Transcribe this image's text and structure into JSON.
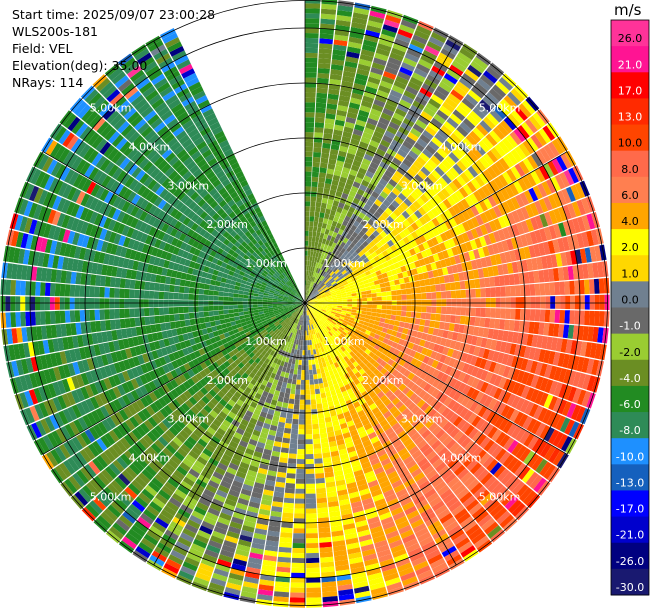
{
  "info": {
    "start_time": "Start time: 2025/09/07 23:00:28",
    "instrument": "WLS200s-181",
    "field": "Field: VEL",
    "elevation": "Elevation(deg): 35.00",
    "nrays": "NRays: 114"
  },
  "chart_data": {
    "type": "heatmap",
    "projection": "polar-ppi",
    "field": "VEL",
    "units": "m/s",
    "nrays": 114,
    "elevation_deg": 35.0,
    "range_rings_km": [
      1.0,
      2.0,
      3.0,
      4.0,
      5.0
    ],
    "ring_labels": [
      "1.00km",
      "2.00km",
      "3.00km",
      "4.00km",
      "5.00km"
    ],
    "max_range_km": 5.5,
    "missing_sector_deg": [
      -28,
      0
    ],
    "colorbar": {
      "title": "m/s",
      "ticks": [
        "26.0",
        "21.0",
        "17.0",
        "13.0",
        "10.0",
        "8.0",
        "6.0",
        "4.0",
        "2.0",
        "1.0",
        "0.0",
        "-1.0",
        "-2.0",
        "-4.0",
        "-6.0",
        "-8.0",
        "-10.0",
        "-13.0",
        "-17.0",
        "-21.0",
        "-26.0",
        "-30.0"
      ],
      "bins": [
        {
          "min": 26,
          "max": 30,
          "color": "#ff3399"
        },
        {
          "min": 21,
          "max": 26,
          "color": "#ff1493"
        },
        {
          "min": 17,
          "max": 21,
          "color": "#ff0000"
        },
        {
          "min": 13,
          "max": 17,
          "color": "#ff2a00"
        },
        {
          "min": 10,
          "max": 13,
          "color": "#ff4500"
        },
        {
          "min": 8,
          "max": 10,
          "color": "#ff6a4a"
        },
        {
          "min": 6,
          "max": 8,
          "color": "#ff7f50"
        },
        {
          "min": 4,
          "max": 6,
          "color": "#ffa500"
        },
        {
          "min": 2,
          "max": 4,
          "color": "#ffff00"
        },
        {
          "min": 1,
          "max": 2,
          "color": "#ffd700"
        },
        {
          "min": 0,
          "max": 1,
          "color": "#708090"
        },
        {
          "min": -1,
          "max": 0,
          "color": "#696969"
        },
        {
          "min": -2,
          "max": -1,
          "color": "#9acd32"
        },
        {
          "min": -4,
          "max": -2,
          "color": "#6b8e23"
        },
        {
          "min": -6,
          "max": -4,
          "color": "#228b22"
        },
        {
          "min": -8,
          "max": -6,
          "color": "#2e8b57"
        },
        {
          "min": -10,
          "max": -8,
          "color": "#1e90ff"
        },
        {
          "min": -13,
          "max": -10,
          "color": "#1560bd"
        },
        {
          "min": -17,
          "max": -13,
          "color": "#0000ff"
        },
        {
          "min": -21,
          "max": -17,
          "color": "#0000cd"
        },
        {
          "min": -26,
          "max": -21,
          "color": "#000080"
        },
        {
          "min": -30,
          "max": -26,
          "color": "#191970"
        }
      ]
    }
  }
}
